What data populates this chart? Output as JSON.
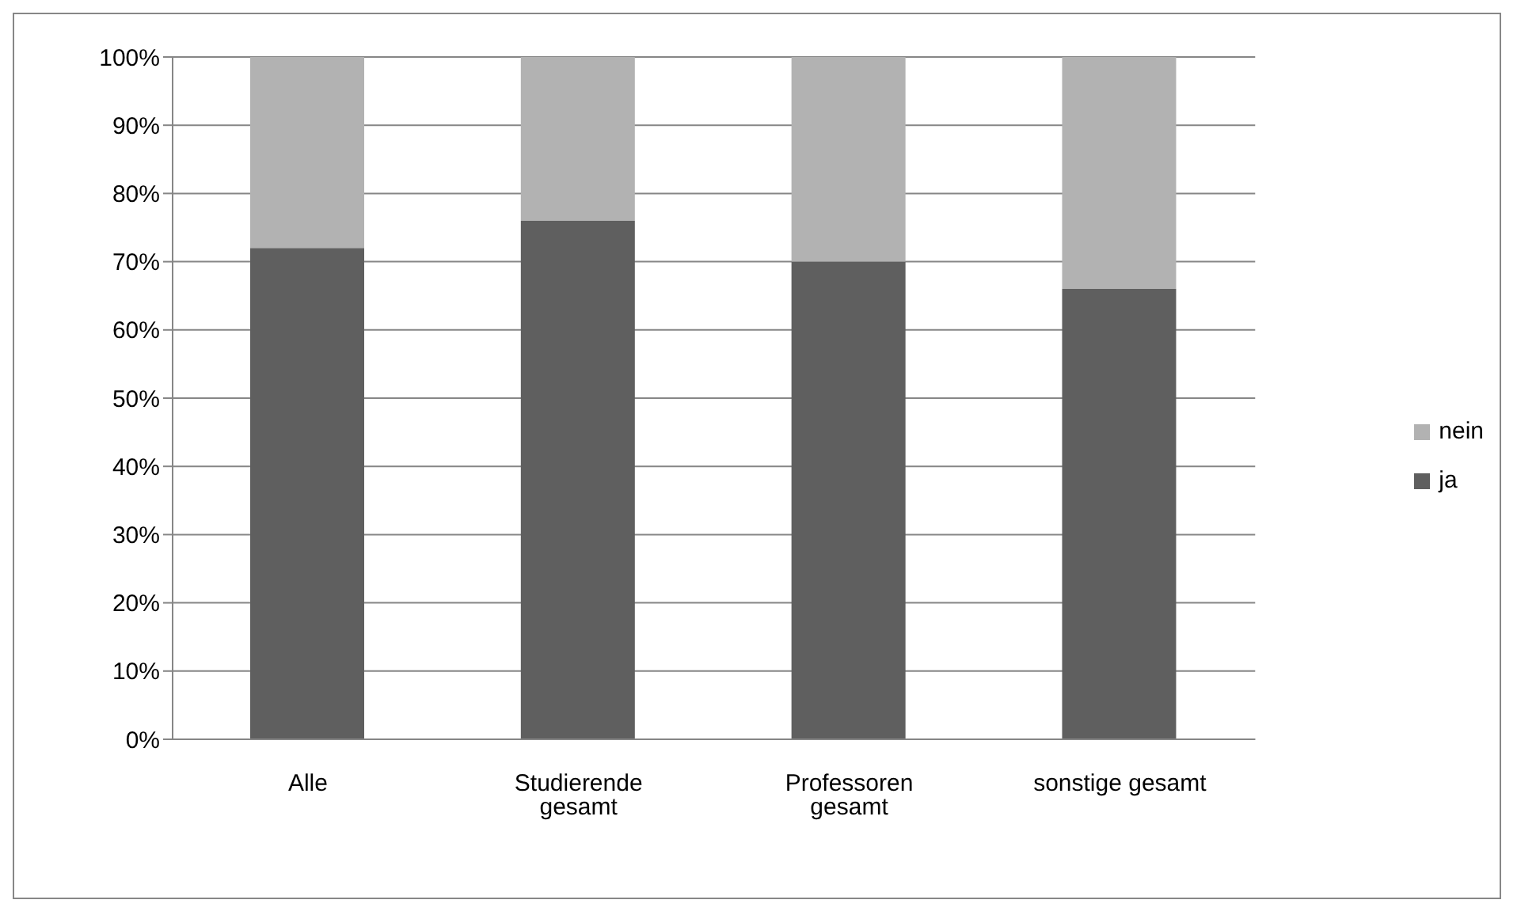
{
  "chart_data": {
    "type": "bar",
    "stacked": true,
    "categories": [
      "Alle",
      "Studierende gesamt",
      "Professoren gesamt",
      "sonstige gesamt"
    ],
    "series": [
      {
        "name": "ja",
        "color": "#5f5f5f",
        "values": [
          72,
          76,
          70,
          66
        ]
      },
      {
        "name": "nein",
        "color": "#b2b2b2",
        "values": [
          28,
          24,
          30,
          34
        ]
      }
    ],
    "ylim": [
      0,
      100
    ],
    "yticks": [
      {
        "value": 0,
        "label": "0%"
      },
      {
        "value": 10,
        "label": "10%"
      },
      {
        "value": 20,
        "label": "20%"
      },
      {
        "value": 30,
        "label": "30%"
      },
      {
        "value": 40,
        "label": "40%"
      },
      {
        "value": 50,
        "label": "50%"
      },
      {
        "value": 60,
        "label": "60%"
      },
      {
        "value": 70,
        "label": "70%"
      },
      {
        "value": 80,
        "label": "80%"
      },
      {
        "value": 90,
        "label": "90%"
      },
      {
        "value": 100,
        "label": "100%"
      }
    ],
    "grid": "y",
    "legend": "right"
  }
}
